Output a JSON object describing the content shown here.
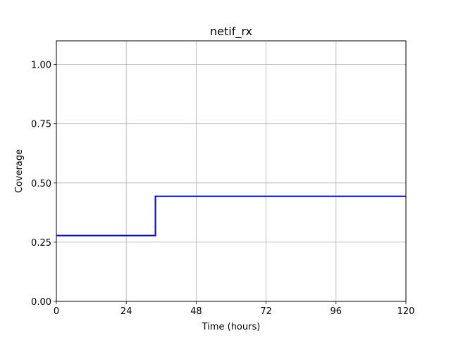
{
  "chart_data": {
    "type": "line",
    "title": "netif_rx",
    "xlabel": "Time (hours)",
    "ylabel": "Coverage",
    "xlim": [
      0,
      120
    ],
    "ylim": [
      0,
      1.1
    ],
    "xticks": [
      0,
      24,
      48,
      72,
      96,
      120
    ],
    "xtick_labels": [
      "0",
      "24",
      "48",
      "72",
      "96",
      "120"
    ],
    "yticks": [
      0.0,
      0.25,
      0.5,
      0.75,
      1.0
    ],
    "ytick_labels": [
      "0.00",
      "0.25",
      "0.50",
      "0.75",
      "1.00"
    ],
    "grid": true,
    "series": [
      {
        "color": "#0000ff",
        "step": true,
        "x": [
          0,
          34,
          34,
          120
        ],
        "y": [
          0.278,
          0.278,
          0.444,
          0.444
        ]
      }
    ]
  }
}
